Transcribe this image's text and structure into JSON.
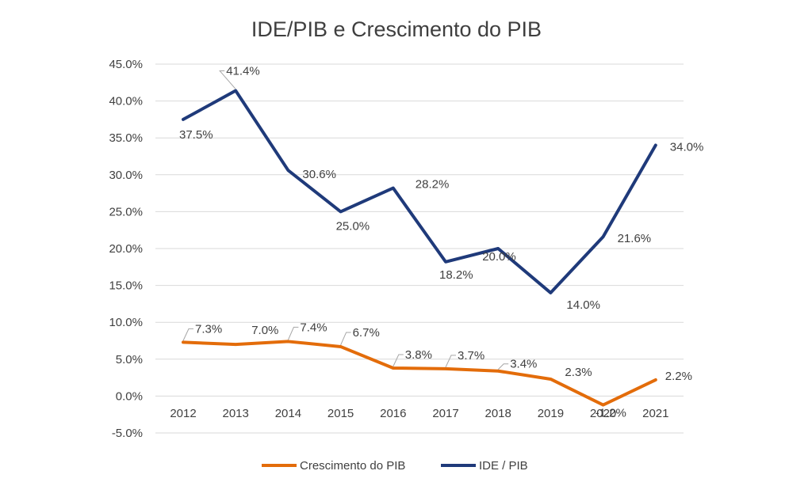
{
  "chart_data": {
    "type": "line",
    "title": "IDE/PIB e Crescimento do PIB",
    "categories": [
      "2012",
      "2013",
      "2014",
      "2015",
      "2016",
      "2017",
      "2018",
      "2019",
      "2020",
      "2021"
    ],
    "ylim": [
      -5,
      45
    ],
    "yticks": [
      45,
      40,
      35,
      30,
      25,
      20,
      15,
      10,
      5,
      0,
      -5
    ],
    "ytick_labels": [
      "45.0%",
      "40.0%",
      "35.0%",
      "30.0%",
      "25.0%",
      "20.0%",
      "15.0%",
      "10.0%",
      "5.0%",
      "0.0%",
      "-5.0%"
    ],
    "grid": true,
    "legend_position": "bottom",
    "series": [
      {
        "name": "Crescimento do PIB",
        "color": "#e36c0a",
        "values": [
          7.3,
          7.0,
          7.4,
          6.7,
          3.8,
          3.7,
          3.4,
          2.3,
          -1.2,
          2.2
        ],
        "labels": [
          "7.3%",
          "7.0%",
          "7.4%",
          "6.7%",
          "3.8%",
          "3.7%",
          "3.4%",
          "2.3%",
          "-1.2%",
          "2.2%"
        ]
      },
      {
        "name": "IDE / PIB",
        "color": "#1f3a7a",
        "values": [
          37.5,
          41.4,
          30.6,
          25.0,
          28.2,
          18.2,
          20.0,
          14.0,
          21.6,
          34.0
        ],
        "labels": [
          "37.5%",
          "41.4%",
          "30.6%",
          "25.0%",
          "28.2%",
          "18.2%",
          "20.0%",
          "14.0%",
          "21.6%",
          "34.0%"
        ]
      }
    ]
  }
}
